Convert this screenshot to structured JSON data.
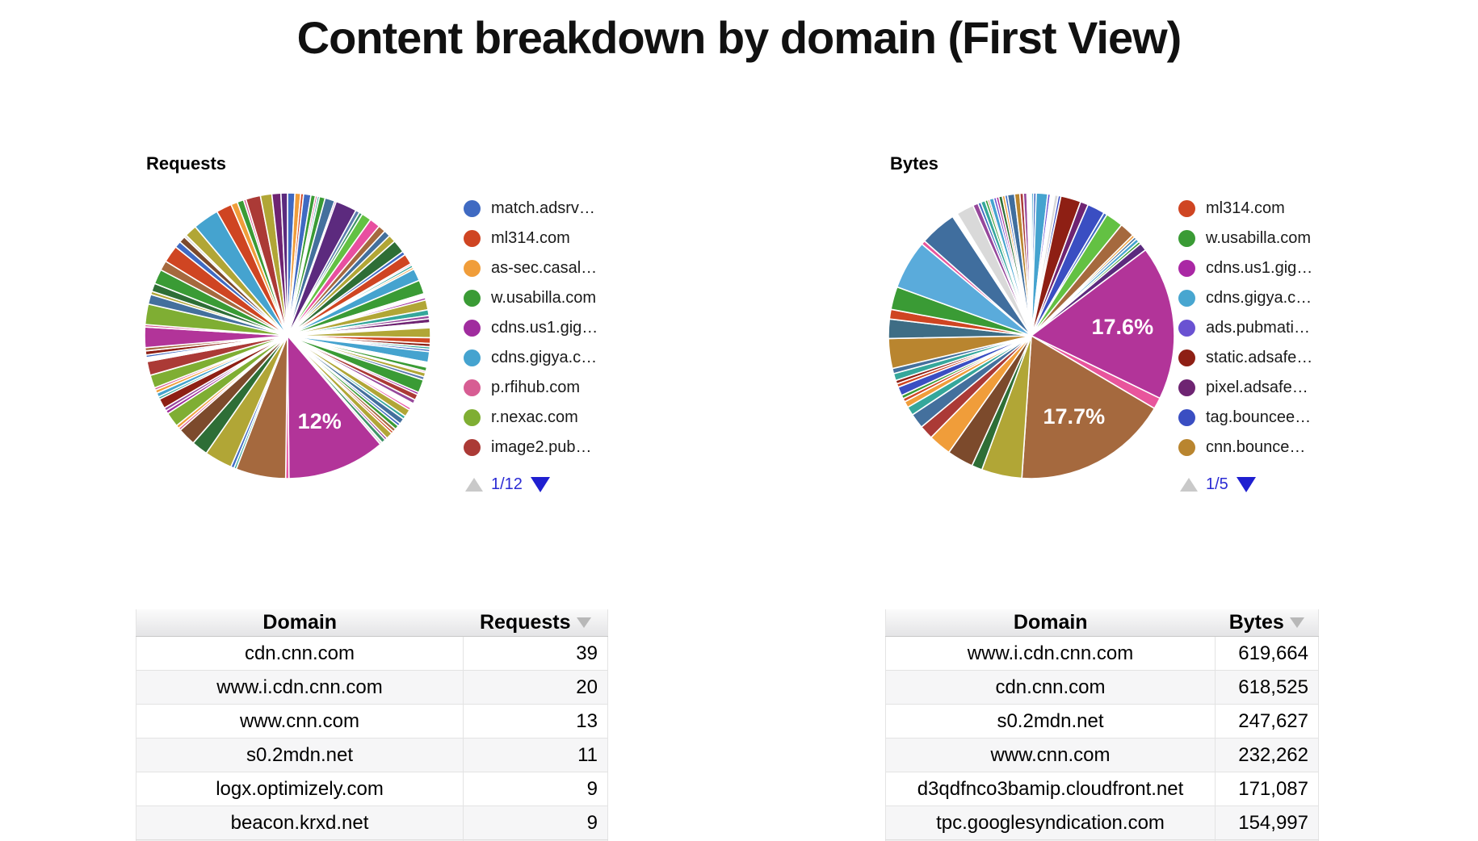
{
  "page_title": "Content breakdown by domain (First View)",
  "chart_data": [
    {
      "type": "pie",
      "title": "Requests",
      "legend_position": "right",
      "legend_page": "1/12",
      "legend": [
        {
          "label": "match.adsrv…",
          "color": "#3f6ac2"
        },
        {
          "label": "ml314.com",
          "color": "#cf4522"
        },
        {
          "label": "as-sec.casal…",
          "color": "#f09d3a"
        },
        {
          "label": "w.usabilla.com",
          "color": "#3a9b35"
        },
        {
          "label": "cdns.us1.gig…",
          "color": "#a02c9e"
        },
        {
          "label": "cdns.gigya.c…",
          "color": "#45a3cf"
        },
        {
          "label": "p.rfihub.com",
          "color": "#d75d93"
        },
        {
          "label": "r.nexac.com",
          "color": "#7fae33"
        },
        {
          "label": "image2.pub…",
          "color": "#ab3a36"
        }
      ],
      "labeled_percentages": [
        "12%"
      ],
      "slices": [
        [
          "#3f6ac2",
          0.9
        ],
        [
          "#f09d3a",
          0.7
        ],
        [
          "#cf4522",
          0.35
        ],
        [
          "#3f6ac2",
          0.9
        ],
        [
          "#3a9b35",
          0.55
        ],
        [
          "#d75d93",
          0.25
        ],
        [
          "#35a79b",
          0.25
        ],
        [
          "#3a9b35",
          0.7
        ],
        [
          "#44709d",
          1.2
        ],
        [
          "#a02c9e",
          0.2
        ],
        [
          "#5c2a7e",
          2.6
        ],
        [
          "#5c7cae",
          0.5
        ],
        [
          "#3e9467",
          0.4
        ],
        [
          "#63c143",
          1.2
        ],
        [
          "#e84fa0",
          1.3
        ],
        [
          "#a5693e",
          0.9
        ],
        [
          "#44709d",
          0.8
        ],
        [
          "#b1a636",
          0.9
        ],
        [
          "#2e6e36",
          1.6
        ],
        [
          "#3f6ac2",
          0.45
        ],
        [
          "#cf4522",
          1.3
        ],
        [
          "#d75d93",
          0.2
        ],
        [
          "#35a79b",
          0.3
        ],
        [
          "#f09d3a",
          0.25
        ],
        [
          "#45a3cf",
          1.5
        ],
        [
          "#3a9b35",
          1.7
        ],
        [
          "#ffffff",
          0.5
        ],
        [
          "#a02c9e",
          0.3
        ],
        [
          "#b1a636",
          1.2
        ],
        [
          "#35a79b",
          0.7
        ],
        [
          "#96479b",
          0.4
        ],
        [
          "#6e2472",
          0.5
        ],
        [
          "#ffffff",
          0.6
        ],
        [
          "#b1a636",
          1.2
        ],
        [
          "#cf4522",
          0.7
        ],
        [
          "#8e1f14",
          0.4
        ],
        [
          "#35a79b",
          0.3
        ],
        [
          "#3f6ac2",
          0.3
        ],
        [
          "#45a3cf",
          1.3
        ],
        [
          "#ffffff",
          0.6
        ],
        [
          "#3a9b35",
          0.5
        ],
        [
          "#d75d93",
          0.2
        ],
        [
          "#b1a636",
          0.5
        ],
        [
          "#5c7cae",
          0.4
        ],
        [
          "#3a9b35",
          1.6
        ],
        [
          "#a02c9e",
          0.3
        ],
        [
          "#ab3a36",
          0.7
        ],
        [
          "#96479b",
          0.5
        ],
        [
          "#ffffff",
          0.6
        ],
        [
          "#e84fa0",
          0.3
        ],
        [
          "#b1a636",
          0.9
        ],
        [
          "#35a79b",
          0.4
        ],
        [
          "#44709d",
          0.7
        ],
        [
          "#3f6ac2",
          0.35
        ],
        [
          "#3a9b35",
          0.5
        ],
        [
          "#a5693e",
          0.4
        ],
        [
          "#cf4522",
          0.3
        ],
        [
          "#b1a636",
          0.8
        ],
        [
          "#96479b",
          0.3
        ],
        [
          "#3e9467",
          0.5
        ],
        [
          "#d9d9d9",
          0.3
        ],
        [
          "#b23499",
          12,
          "12%"
        ],
        [
          "#e84fa0",
          0.4
        ],
        [
          "#a5693e",
          6.1
        ],
        [
          "#35a79b",
          0.3
        ],
        [
          "#3f6ac2",
          0.4
        ],
        [
          "#b1a636",
          3.4
        ],
        [
          "#2e6e36",
          2.0
        ],
        [
          "#7c4a2c",
          2.2
        ],
        [
          "#d75d93",
          0.3
        ],
        [
          "#f09d3a",
          0.4
        ],
        [
          "#7fae33",
          1.8
        ],
        [
          "#a02c9e",
          0.4
        ],
        [
          "#96479b",
          0.4
        ],
        [
          "#8e1f14",
          1.2
        ],
        [
          "#35a79b",
          0.3
        ],
        [
          "#45a3cf",
          0.5
        ],
        [
          "#f09d3a",
          0.4
        ],
        [
          "#d75d93",
          0.3
        ],
        [
          "#7fae33",
          1.6
        ],
        [
          "#ab3a36",
          1.7
        ],
        [
          "#ffffff",
          0.5
        ],
        [
          "#3f6ac2",
          0.3
        ],
        [
          "#8e1f14",
          0.5
        ],
        [
          "#a5693e",
          0.4
        ],
        [
          "#b23499",
          2.5
        ],
        [
          "#d75d93",
          0.3
        ],
        [
          "#7fae33",
          2.5
        ],
        [
          "#44709d",
          1.2
        ],
        [
          "#b1a636",
          0.4
        ],
        [
          "#2e6e36",
          1.0
        ],
        [
          "#3a9b35",
          1.8
        ],
        [
          "#a5693e",
          1.2
        ],
        [
          "#cf4522",
          2.1
        ],
        [
          "#3f6ac2",
          0.8
        ],
        [
          "#7c4a2c",
          0.8
        ],
        [
          "#d9d9d9",
          0.3
        ],
        [
          "#b1a636",
          1.5
        ],
        [
          "#45a3cf",
          3.2
        ],
        [
          "#cf4522",
          1.9
        ],
        [
          "#f09d3a",
          0.8
        ],
        [
          "#3a9b35",
          0.8
        ],
        [
          "#d75d93",
          0.3
        ],
        [
          "#ab3a36",
          1.8
        ],
        [
          "#b1a636",
          1.4
        ],
        [
          "#6e2472",
          1.1
        ],
        [
          "#5c2a7e",
          0.8
        ]
      ]
    },
    {
      "type": "pie",
      "title": "Bytes",
      "legend_position": "right",
      "legend_page": "1/5",
      "legend": [
        {
          "label": "ml314.com",
          "color": "#cf4522"
        },
        {
          "label": "w.usabilla.com",
          "color": "#3a9b35"
        },
        {
          "label": "cdns.us1.gig…",
          "color": "#aa28a4"
        },
        {
          "label": "cdns.gigya.c…",
          "color": "#48a6d0"
        },
        {
          "label": "ads.pubmati…",
          "color": "#6a52d2"
        },
        {
          "label": "static.adsafe…",
          "color": "#8e1f14"
        },
        {
          "label": "pixel.adsafe…",
          "color": "#6e2472"
        },
        {
          "label": "tag.bouncee…",
          "color": "#3a4ec2"
        },
        {
          "label": "cnn.bounce…",
          "color": "#b9852f"
        }
      ],
      "labeled_percentages": [
        "17.6%",
        "17.7%"
      ],
      "slices": [
        [
          "#45a3cf",
          0.25
        ],
        [
          "#3f6ac2",
          0.3
        ],
        [
          "#45a3cf",
          1.3
        ],
        [
          "#6a52d2",
          0.3
        ],
        [
          "#ffffff",
          0.5
        ],
        [
          "#d9d9d9",
          0.4
        ],
        [
          "#3a4ec2",
          0.3
        ],
        [
          "#8e1f14",
          2.3
        ],
        [
          "#6e2472",
          0.9
        ],
        [
          "#3a4ec2",
          2.0
        ],
        [
          "#3f6ac2",
          0.4
        ],
        [
          "#63c143",
          2.0
        ],
        [
          "#a5693e",
          1.7
        ],
        [
          "#f09d3a",
          0.3
        ],
        [
          "#44709d",
          0.3
        ],
        [
          "#45a3cf",
          0.4
        ],
        [
          "#3a9b35",
          0.3
        ],
        [
          "#5c2a7e",
          0.9
        ],
        [
          "#b23499",
          17.6,
          "17.6%"
        ],
        [
          "#e8559c",
          1.3
        ],
        [
          "#a5693e",
          17.7,
          "17.7%"
        ],
        [
          "#b1a636",
          4.6
        ],
        [
          "#2e6e36",
          1.2
        ],
        [
          "#7c4a2c",
          3.0
        ],
        [
          "#f09d3a",
          2.6
        ],
        [
          "#ab3a36",
          1.6
        ],
        [
          "#44709d",
          1.7
        ],
        [
          "#35a79b",
          1.0
        ],
        [
          "#f09d3a",
          0.7
        ],
        [
          "#cf4522",
          0.4
        ],
        [
          "#3a9b35",
          0.4
        ],
        [
          "#3a4ec2",
          1.0
        ],
        [
          "#cf4522",
          0.4
        ],
        [
          "#8e1f14",
          0.4
        ],
        [
          "#35a79b",
          0.8
        ],
        [
          "#44709d",
          0.6
        ],
        [
          "#b9852f",
          3.4
        ],
        [
          "#3e6d85",
          2.2
        ],
        [
          "#cf4522",
          1.1
        ],
        [
          "#3a9b35",
          2.6
        ],
        [
          "#5aabdb",
          5.6
        ],
        [
          "#e8559c",
          0.45
        ],
        [
          "#406e9e",
          4.2
        ],
        [
          "#ffffff",
          0.6
        ],
        [
          "#d9d9d9",
          2.0
        ],
        [
          "#96479b",
          0.6
        ],
        [
          "#3f6ac2",
          0.35
        ],
        [
          "#35a79b",
          0.5
        ],
        [
          "#3a9b35",
          0.3
        ],
        [
          "#cf4522",
          0.2
        ],
        [
          "#45a3cf",
          0.5
        ],
        [
          "#6a52d2",
          0.3
        ],
        [
          "#b23499",
          0.3
        ],
        [
          "#2e6e36",
          0.4
        ],
        [
          "#f09d3a",
          0.3
        ],
        [
          "#3f6ac2",
          0.3
        ],
        [
          "#406e9e",
          0.8
        ],
        [
          "#b9852f",
          0.6
        ],
        [
          "#ab3a36",
          0.4
        ],
        [
          "#96479b",
          0.4
        ],
        [
          "#ffffff",
          0.5
        ]
      ]
    },
    {
      "type": "table",
      "columns": [
        "Domain",
        "Requests"
      ],
      "sorted_by": "Requests",
      "sort_direction": "desc",
      "rows": [
        [
          "cdn.cnn.com",
          "39"
        ],
        [
          "www.i.cdn.cnn.com",
          "20"
        ],
        [
          "www.cnn.com",
          "13"
        ],
        [
          "s0.2mdn.net",
          "11"
        ],
        [
          "logx.optimizely.com",
          "9"
        ],
        [
          "beacon.krxd.net",
          "9"
        ]
      ]
    },
    {
      "type": "table",
      "columns": [
        "Domain",
        "Bytes"
      ],
      "sorted_by": "Bytes",
      "sort_direction": "desc",
      "rows": [
        [
          "www.i.cdn.cnn.com",
          "619,664"
        ],
        [
          "cdn.cnn.com",
          "618,525"
        ],
        [
          "s0.2mdn.net",
          "247,627"
        ],
        [
          "www.cnn.com",
          "232,262"
        ],
        [
          "d3qdfnco3bamip.cloudfront.net",
          "171,087"
        ],
        [
          "tpc.googlesyndication.com",
          "154,997"
        ]
      ]
    }
  ]
}
